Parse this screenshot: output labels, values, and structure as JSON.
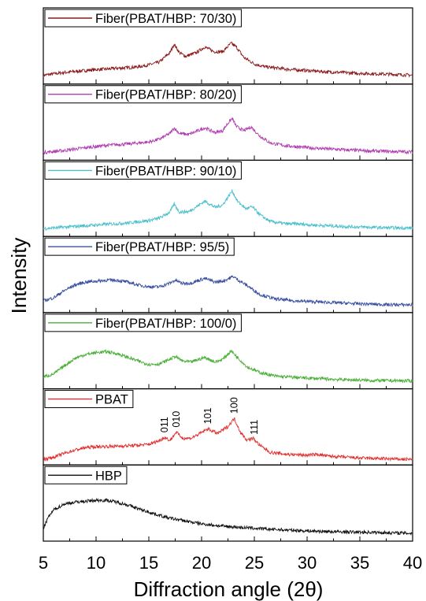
{
  "chart_data": {
    "type": "line",
    "xlabel": "Diffraction angle (2θ)",
    "ylabel": "Intensity",
    "xlim": [
      5,
      40
    ],
    "x_ticks": [
      "5",
      "10",
      "15",
      "20",
      "25",
      "30",
      "35",
      "40"
    ],
    "y_ticks": "none",
    "layout": "stacked panels, legend at top-left of each panel",
    "series": [
      {
        "name": "Fiber(PBAT/HBP: 70/30)",
        "color": "#8b1a1a",
        "profile": [
          [
            5,
            0.12
          ],
          [
            6,
            0.15
          ],
          [
            7,
            0.18
          ],
          [
            8,
            0.2
          ],
          [
            9,
            0.22
          ],
          [
            10,
            0.24
          ],
          [
            11,
            0.25
          ],
          [
            12,
            0.27
          ],
          [
            13,
            0.28
          ],
          [
            14,
            0.3
          ],
          [
            15,
            0.34
          ],
          [
            16,
            0.4
          ],
          [
            17,
            0.6
          ],
          [
            17.4,
            0.78
          ],
          [
            17.9,
            0.6
          ],
          [
            18.5,
            0.52
          ],
          [
            19.5,
            0.6
          ],
          [
            20.3,
            0.72
          ],
          [
            21.2,
            0.62
          ],
          [
            22,
            0.62
          ],
          [
            22.8,
            0.8
          ],
          [
            23.3,
            0.72
          ],
          [
            24,
            0.5
          ],
          [
            25,
            0.36
          ],
          [
            26,
            0.3
          ],
          [
            28,
            0.25
          ],
          [
            30,
            0.22
          ],
          [
            32,
            0.19
          ],
          [
            35,
            0.16
          ],
          [
            38,
            0.14
          ],
          [
            40,
            0.12
          ]
        ]
      },
      {
        "name": "Fiber(PBAT/HBP: 80/20)",
        "color": "#b040b0",
        "profile": [
          [
            5,
            0.1
          ],
          [
            7,
            0.14
          ],
          [
            9,
            0.2
          ],
          [
            11,
            0.25
          ],
          [
            13,
            0.28
          ],
          [
            15,
            0.32
          ],
          [
            16,
            0.38
          ],
          [
            17,
            0.5
          ],
          [
            17.4,
            0.62
          ],
          [
            17.9,
            0.5
          ],
          [
            18.8,
            0.48
          ],
          [
            20.3,
            0.62
          ],
          [
            21.3,
            0.52
          ],
          [
            22,
            0.56
          ],
          [
            22.5,
            0.72
          ],
          [
            22.9,
            0.82
          ],
          [
            23.3,
            0.65
          ],
          [
            24,
            0.56
          ],
          [
            24.7,
            0.64
          ],
          [
            25.5,
            0.45
          ],
          [
            26.5,
            0.3
          ],
          [
            28,
            0.24
          ],
          [
            30,
            0.2
          ],
          [
            33,
            0.16
          ],
          [
            36,
            0.13
          ],
          [
            40,
            0.11
          ]
        ]
      },
      {
        "name": "Fiber(PBAT/HBP: 90/10)",
        "color": "#4cc0cc",
        "profile": [
          [
            5,
            0.1
          ],
          [
            7,
            0.13
          ],
          [
            9,
            0.16
          ],
          [
            11,
            0.19
          ],
          [
            13,
            0.22
          ],
          [
            15,
            0.27
          ],
          [
            16,
            0.32
          ],
          [
            17,
            0.45
          ],
          [
            17.4,
            0.62
          ],
          [
            17.9,
            0.45
          ],
          [
            18.8,
            0.46
          ],
          [
            20.3,
            0.68
          ],
          [
            21.3,
            0.55
          ],
          [
            22,
            0.6
          ],
          [
            22.9,
            0.9
          ],
          [
            23.4,
            0.68
          ],
          [
            24.2,
            0.52
          ],
          [
            24.8,
            0.56
          ],
          [
            25.6,
            0.38
          ],
          [
            26.5,
            0.25
          ],
          [
            28,
            0.2
          ],
          [
            29,
            0.2
          ],
          [
            31,
            0.17
          ],
          [
            34,
            0.14
          ],
          [
            37,
            0.12
          ],
          [
            40,
            0.11
          ]
        ]
      },
      {
        "name": "Fiber(PBAT/HBP: 95/5)",
        "color": "#3a50a0",
        "profile": [
          [
            5,
            0.18
          ],
          [
            6,
            0.25
          ],
          [
            7,
            0.4
          ],
          [
            8,
            0.52
          ],
          [
            9,
            0.58
          ],
          [
            10,
            0.6
          ],
          [
            11,
            0.62
          ],
          [
            12,
            0.62
          ],
          [
            13,
            0.58
          ],
          [
            14,
            0.52
          ],
          [
            15,
            0.48
          ],
          [
            16,
            0.48
          ],
          [
            17,
            0.56
          ],
          [
            17.5,
            0.62
          ],
          [
            18.2,
            0.55
          ],
          [
            19,
            0.56
          ],
          [
            20.3,
            0.66
          ],
          [
            21.3,
            0.58
          ],
          [
            22,
            0.6
          ],
          [
            23,
            0.7
          ],
          [
            23.5,
            0.62
          ],
          [
            24.5,
            0.48
          ],
          [
            25.5,
            0.32
          ],
          [
            27,
            0.22
          ],
          [
            29,
            0.18
          ],
          [
            32,
            0.15
          ],
          [
            35,
            0.12
          ],
          [
            38,
            0.1
          ],
          [
            40,
            0.1
          ]
        ]
      },
      {
        "name": "Fiber(PBAT/HBP: 100/0)",
        "color": "#4caf3a",
        "profile": [
          [
            5,
            0.18
          ],
          [
            6,
            0.25
          ],
          [
            7,
            0.42
          ],
          [
            8,
            0.58
          ],
          [
            9,
            0.66
          ],
          [
            10,
            0.7
          ],
          [
            11,
            0.72
          ],
          [
            12,
            0.68
          ],
          [
            13,
            0.6
          ],
          [
            14,
            0.52
          ],
          [
            15,
            0.45
          ],
          [
            16,
            0.46
          ],
          [
            17,
            0.56
          ],
          [
            17.5,
            0.62
          ],
          [
            18.2,
            0.52
          ],
          [
            19,
            0.5
          ],
          [
            20.3,
            0.6
          ],
          [
            21.3,
            0.5
          ],
          [
            22,
            0.56
          ],
          [
            22.8,
            0.74
          ],
          [
            23.4,
            0.6
          ],
          [
            24.3,
            0.4
          ],
          [
            25.5,
            0.28
          ],
          [
            27,
            0.2
          ],
          [
            30,
            0.16
          ],
          [
            33,
            0.13
          ],
          [
            36,
            0.11
          ],
          [
            40,
            0.1
          ]
        ]
      },
      {
        "name": "PBAT",
        "color": "#e03030",
        "profile": [
          [
            5,
            0.05
          ],
          [
            6,
            0.1
          ],
          [
            7,
            0.18
          ],
          [
            8,
            0.25
          ],
          [
            9,
            0.3
          ],
          [
            10,
            0.32
          ],
          [
            12,
            0.33
          ],
          [
            14,
            0.35
          ],
          [
            15,
            0.37
          ],
          [
            16,
            0.45
          ],
          [
            16.5,
            0.52
          ],
          [
            17,
            0.45
          ],
          [
            17.6,
            0.63
          ],
          [
            18.2,
            0.5
          ],
          [
            19,
            0.5
          ],
          [
            20,
            0.62
          ],
          [
            20.6,
            0.7
          ],
          [
            21.5,
            0.6
          ],
          [
            22.5,
            0.75
          ],
          [
            23.1,
            0.92
          ],
          [
            23.7,
            0.62
          ],
          [
            24.3,
            0.46
          ],
          [
            24.9,
            0.5
          ],
          [
            25.5,
            0.35
          ],
          [
            26.5,
            0.2
          ],
          [
            28,
            0.16
          ],
          [
            30,
            0.14
          ],
          [
            31,
            0.16
          ],
          [
            32,
            0.12
          ],
          [
            35,
            0.08
          ],
          [
            38,
            0.06
          ],
          [
            40,
            0.05
          ]
        ]
      },
      {
        "name": "HBP",
        "color": "#111111",
        "profile": [
          [
            5,
            0.2
          ],
          [
            5.5,
            0.45
          ],
          [
            6,
            0.6
          ],
          [
            7,
            0.72
          ],
          [
            8,
            0.76
          ],
          [
            9,
            0.78
          ],
          [
            10,
            0.8
          ],
          [
            11,
            0.8
          ],
          [
            12,
            0.76
          ],
          [
            13,
            0.7
          ],
          [
            14,
            0.62
          ],
          [
            15,
            0.55
          ],
          [
            16,
            0.48
          ],
          [
            17,
            0.42
          ],
          [
            18,
            0.38
          ],
          [
            19,
            0.34
          ],
          [
            20,
            0.3
          ],
          [
            22,
            0.25
          ],
          [
            24,
            0.22
          ],
          [
            26,
            0.19
          ],
          [
            28,
            0.17
          ],
          [
            30,
            0.15
          ],
          [
            33,
            0.13
          ],
          [
            36,
            0.12
          ],
          [
            40,
            0.1
          ]
        ]
      }
    ],
    "annotations": [
      {
        "series": "PBAT",
        "label": "011",
        "x": 16.5
      },
      {
        "series": "PBAT",
        "label": "010",
        "x": 17.6
      },
      {
        "series": "PBAT",
        "label": "101",
        "x": 20.6
      },
      {
        "series": "PBAT",
        "label": "100",
        "x": 23.1
      },
      {
        "series": "PBAT",
        "label": "111",
        "x": 25.0
      }
    ]
  }
}
